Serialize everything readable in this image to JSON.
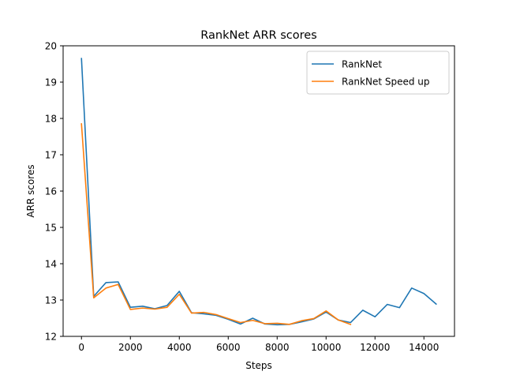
{
  "chart_data": {
    "type": "line",
    "title": "RankNet ARR scores",
    "xlabel": "Steps",
    "ylabel": "ARR scores",
    "xlim": [
      -750,
      15250
    ],
    "ylim": [
      12,
      20
    ],
    "xticks": [
      0,
      2000,
      4000,
      6000,
      8000,
      10000,
      12000,
      14000
    ],
    "yticks": [
      12,
      13,
      14,
      15,
      16,
      17,
      18,
      19,
      20
    ],
    "grid": false,
    "legend_position": "upper right",
    "series": [
      {
        "name": "RankNet",
        "color": "#1f77b4",
        "x": [
          0,
          500,
          1000,
          1500,
          2000,
          2500,
          3000,
          3500,
          4000,
          4500,
          5000,
          5500,
          6000,
          6500,
          7000,
          7500,
          8000,
          8500,
          9000,
          9500,
          10000,
          10500,
          11000,
          11500,
          12000,
          12500,
          13000,
          13500,
          14000,
          14500
        ],
        "y": [
          19.65,
          13.1,
          13.48,
          13.5,
          12.8,
          12.83,
          12.76,
          12.85,
          13.24,
          12.65,
          12.62,
          12.58,
          12.47,
          12.34,
          12.5,
          12.34,
          12.32,
          12.33,
          12.4,
          12.48,
          12.67,
          12.45,
          12.38,
          12.72,
          12.54,
          12.88,
          12.79,
          13.33,
          13.18,
          12.89
        ]
      },
      {
        "name": "RankNet Speed up",
        "color": "#ff7f0e",
        "x": [
          0,
          500,
          1000,
          1500,
          2000,
          2500,
          3000,
          3500,
          4000,
          4500,
          5000,
          5500,
          6000,
          6500,
          7000,
          7500,
          8000,
          8500,
          9000,
          9500,
          10000,
          10500,
          11000
        ],
        "y": [
          17.85,
          13.06,
          13.33,
          13.43,
          12.74,
          12.78,
          12.75,
          12.8,
          13.16,
          12.64,
          12.66,
          12.6,
          12.49,
          12.38,
          12.44,
          12.35,
          12.36,
          12.33,
          12.43,
          12.49,
          12.7,
          12.45,
          12.33
        ]
      }
    ]
  }
}
